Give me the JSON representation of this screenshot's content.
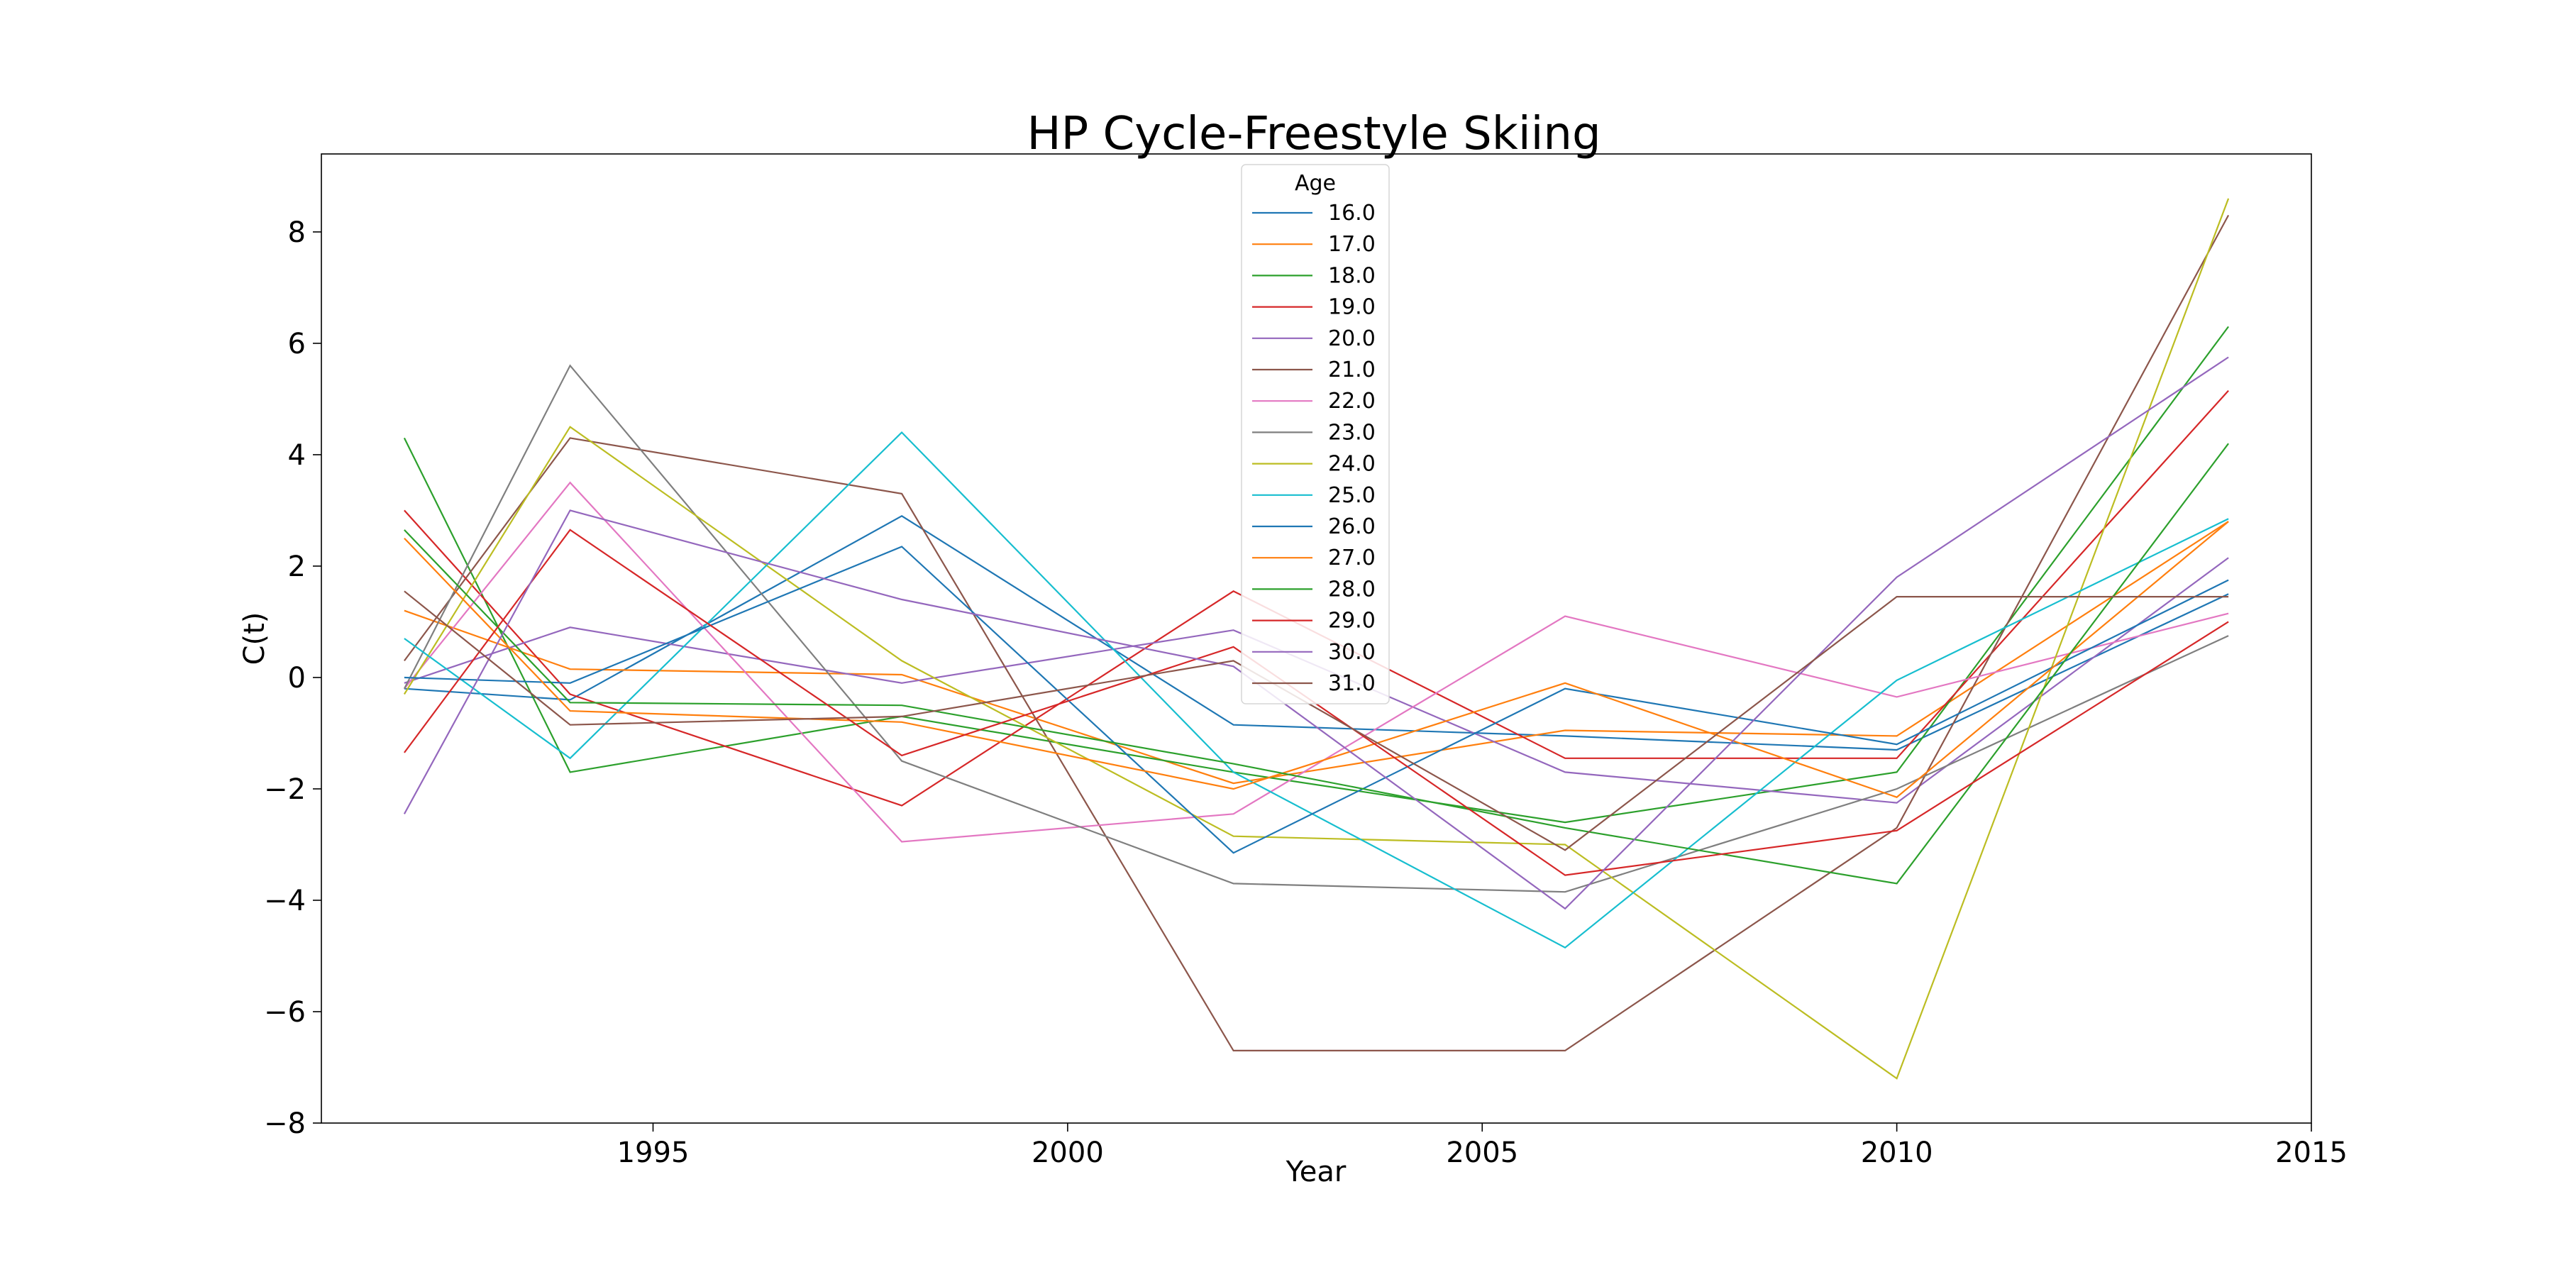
{
  "chart_data": {
    "type": "line",
    "title": "HP Cycle-Freestyle Skiing",
    "xlabel": "Year",
    "ylabel": "C(t)",
    "xlim": [
      1991,
      2015
    ],
    "ylim": [
      -8,
      9.4
    ],
    "xticks": [
      1995,
      2000,
      2005,
      2010,
      2015
    ],
    "yticks": [
      -8,
      -6,
      -4,
      -2,
      0,
      2,
      4,
      6,
      8
    ],
    "grid": false,
    "legend": {
      "title": "Age",
      "placement": "upper-center"
    },
    "x": [
      1992,
      1994,
      1998,
      2002,
      2006,
      2010,
      2014
    ],
    "series": [
      {
        "name": "16.0",
        "color": "#1f77b4",
        "values": [
          -0.2,
          -0.4,
          2.9,
          -0.85,
          -1.05,
          -1.3,
          1.5
        ]
      },
      {
        "name": "17.0",
        "color": "#ff7f0e",
        "values": [
          1.2,
          0.15,
          0.05,
          -1.9,
          -0.95,
          -1.05,
          2.8
        ]
      },
      {
        "name": "18.0",
        "color": "#2ca02c",
        "values": [
          4.3,
          -1.7,
          -0.7,
          -1.7,
          -2.6,
          -1.7,
          6.3
        ]
      },
      {
        "name": "19.0",
        "color": "#d62728",
        "values": [
          3.0,
          -0.3,
          -2.3,
          1.55,
          -1.45,
          -1.45,
          5.15
        ]
      },
      {
        "name": "20.0",
        "color": "#9467bd",
        "values": [
          -0.1,
          0.9,
          -0.1,
          0.85,
          -1.7,
          -2.25,
          2.15
        ]
      },
      {
        "name": "21.0",
        "color": "#8c564b",
        "values": [
          0.3,
          4.3,
          3.3,
          -6.7,
          -6.7,
          -2.7,
          8.3
        ]
      },
      {
        "name": "22.0",
        "color": "#e377c2",
        "values": [
          -0.2,
          3.5,
          -2.95,
          -2.45,
          1.1,
          -0.35,
          1.15
        ]
      },
      {
        "name": "23.0",
        "color": "#7f7f7f",
        "values": [
          -0.2,
          5.6,
          -1.5,
          -3.7,
          -3.85,
          -2.0,
          0.75
        ]
      },
      {
        "name": "24.0",
        "color": "#bcbd22",
        "values": [
          -0.3,
          4.5,
          0.3,
          -2.85,
          -3.0,
          -7.2,
          8.6
        ]
      },
      {
        "name": "25.0",
        "color": "#17becf",
        "values": [
          0.7,
          -1.45,
          4.4,
          -1.7,
          -4.85,
          -0.05,
          2.85
        ]
      },
      {
        "name": "26.0",
        "color": "#1f77b4",
        "values": [
          0.0,
          -0.1,
          2.35,
          -3.15,
          -0.2,
          -1.2,
          1.75
        ]
      },
      {
        "name": "27.0",
        "color": "#ff7f0e",
        "values": [
          2.5,
          -0.6,
          -0.8,
          -2.0,
          -0.1,
          -2.15,
          2.8
        ]
      },
      {
        "name": "28.0",
        "color": "#2ca02c",
        "values": [
          2.65,
          -0.45,
          -0.5,
          -1.55,
          -2.7,
          -3.7,
          4.2
        ]
      },
      {
        "name": "29.0",
        "color": "#d62728",
        "values": [
          -1.35,
          2.65,
          -1.4,
          0.55,
          -3.55,
          -2.75,
          1.0
        ]
      },
      {
        "name": "30.0",
        "color": "#9467bd",
        "values": [
          -2.45,
          3.0,
          1.4,
          0.2,
          -4.15,
          1.8,
          5.75
        ]
      },
      {
        "name": "31.0",
        "color": "#8c564b",
        "values": [
          1.55,
          -0.85,
          -0.7,
          0.3,
          -3.1,
          1.45,
          1.45
        ]
      }
    ]
  }
}
